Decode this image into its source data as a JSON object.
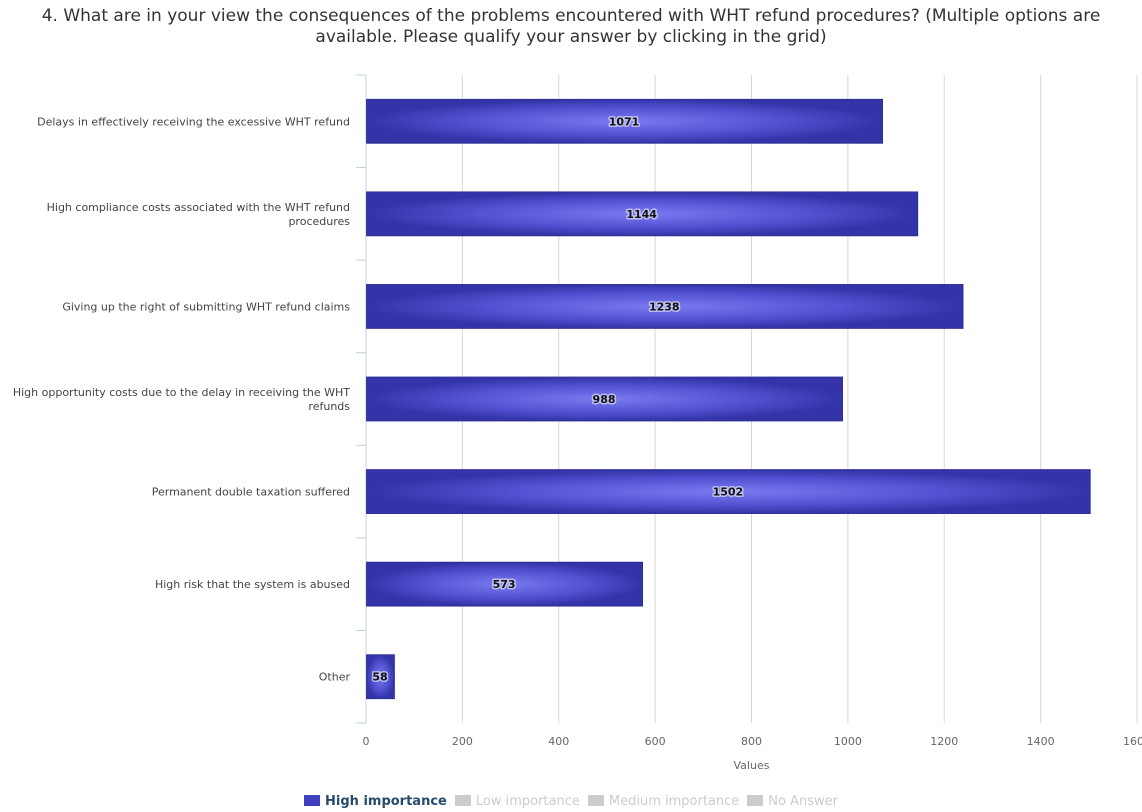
{
  "chart_data": {
    "type": "bar",
    "orientation": "horizontal",
    "title": "4. What are in your view the consequences of the problems encountered with WHT refund procedures? (Multiple options are available. Please qualify your answer by clicking in the grid)",
    "xlabel": "Values",
    "ylabel": "",
    "xlim": [
      0,
      1600
    ],
    "x_ticks": [
      0,
      200,
      400,
      600,
      800,
      1000,
      1200,
      1400,
      1600
    ],
    "grid": true,
    "legend_position": "bottom",
    "categories": [
      [
        "Delays in effectively receiving the excessive WHT refund"
      ],
      [
        "High compliance costs associated with the WHT refund",
        "procedures"
      ],
      [
        "Giving up the right of submitting WHT refund claims"
      ],
      [
        "High opportunity costs due to the delay in receiving the WHT",
        "refunds"
      ],
      [
        "Permanent double taxation suffered"
      ],
      [
        "High risk that the system is abused"
      ],
      [
        "Other"
      ]
    ],
    "series": [
      {
        "name": "High importance",
        "values": [
          1071,
          1144,
          1238,
          988,
          1502,
          573,
          58
        ],
        "color": "#3f3fbf",
        "active": true
      },
      {
        "name": "Low importance",
        "values": null,
        "color": "#cccccc",
        "active": false
      },
      {
        "name": "Medium importance",
        "values": null,
        "color": "#cccccc",
        "active": false
      },
      {
        "name": "No Answer",
        "values": null,
        "color": "#cccccc",
        "active": false
      }
    ]
  }
}
